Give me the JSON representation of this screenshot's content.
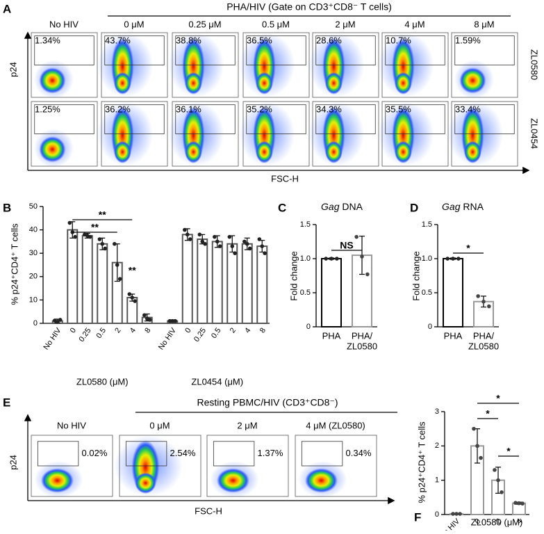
{
  "panel_a": {
    "label": "A",
    "header": "PHA/HIV (Gate on CD3⁺CD8⁻ T cells)",
    "columns": [
      "No HIV",
      "0 μM",
      "0.25 μM",
      "0.5 μM",
      "2 μM",
      "4 μM",
      "8 μM"
    ],
    "rows": [
      {
        "name": "ZL0580",
        "percents": [
          "1.34%",
          "43.7%",
          "38.8%",
          "36.5%",
          "28.6%",
          "10.7%",
          "1.59%"
        ]
      },
      {
        "name": "ZL0454",
        "percents": [
          "1.25%",
          "36.2%",
          "36.1%",
          "35.2%",
          "34.3%",
          "35.5%",
          "33.4%"
        ]
      }
    ],
    "y_label": "p24",
    "x_label": "FSC-H"
  },
  "panel_e": {
    "label": "E",
    "header": "Resting PBMC/HIV (CD3⁺CD8⁻)",
    "columns": [
      "No HIV",
      "0 μM",
      "2 μM",
      "4 μM (ZL0580)"
    ],
    "percents": [
      "0.02%",
      "2.54%",
      "1.37%",
      "0.34%"
    ],
    "y_label": "p24",
    "x_label": "FSC-H"
  },
  "chart_data": [
    {
      "type": "bar",
      "label": "B",
      "y_label": "% p24⁺CD4⁺ T cells",
      "ylim": [
        0,
        50
      ],
      "yticks": [
        0,
        10,
        20,
        30,
        40,
        50
      ],
      "color": "#555555",
      "groups": [
        {
          "name": "ZL0580 (μM)",
          "categories": [
            "No HIV",
            "0",
            "0.25",
            "0.5",
            "2",
            "4",
            "8"
          ],
          "values": [
            1,
            40,
            37.5,
            34,
            26,
            11,
            2.5
          ],
          "errors": [
            0.8,
            3.5,
            1,
            2.5,
            8,
            1.5,
            1.5
          ],
          "points": [
            [
              1.2,
              0.6,
              1.5
            ],
            [
              43,
              39,
              37
            ],
            [
              38,
              37.5,
              37
            ],
            [
              36,
              34,
              32
            ],
            [
              34,
              25,
              19
            ],
            [
              12.5,
              11,
              9.5
            ],
            [
              3.5,
              2,
              1.5
            ]
          ]
        },
        {
          "name": "ZL0454 (μM)",
          "categories": [
            "No HIV",
            "0",
            "0.25",
            "0.5",
            "2",
            "4",
            "8"
          ],
          "values": [
            1,
            38,
            36,
            35,
            34,
            34,
            33
          ],
          "errors": [
            0.5,
            2.5,
            2,
            2.5,
            3.5,
            2.5,
            2.5
          ],
          "points": [
            [
              1,
              1,
              1
            ],
            [
              40,
              38,
              36
            ],
            [
              38,
              35,
              34
            ],
            [
              37,
              35,
              33
            ],
            [
              37,
              33,
              30
            ],
            [
              35,
              34,
              32
            ],
            [
              36,
              33,
              30
            ]
          ]
        }
      ],
      "significance": [
        "**",
        "**",
        "**"
      ]
    },
    {
      "type": "bar",
      "label": "C",
      "title_gene": "Gag",
      "title": "DNA",
      "y_label": "Fold change",
      "ylim": [
        0,
        1.5
      ],
      "yticks": [
        0,
        0.5,
        {
          "value": 1,
          "label": "1.0"
        },
        1.5
      ],
      "categories": [
        [
          "PHA"
        ],
        [
          "PHA/",
          "ZL0580"
        ]
      ],
      "colors": [
        "#000000",
        "#999999"
      ],
      "values": [
        1,
        1.05
      ],
      "errors": [
        0.01,
        0.28
      ],
      "points": [
        [
          1,
          1,
          1
        ],
        [
          1.32,
          1.03,
          0.77
        ]
      ],
      "significance": [
        "NS"
      ]
    },
    {
      "type": "bar",
      "label": "D",
      "title_gene": "Gag",
      "title": "RNA",
      "y_label": "Fold change",
      "ylim": [
        0,
        1.5
      ],
      "yticks": [
        0,
        0.5,
        {
          "value": 1,
          "label": "1.0"
        },
        1.5
      ],
      "categories": [
        [
          "PHA"
        ],
        [
          "PHA/",
          "ZL0580"
        ]
      ],
      "colors": [
        "#000000",
        "#999999"
      ],
      "values": [
        1,
        0.37
      ],
      "errors": [
        0.01,
        0.08
      ],
      "points": [
        [
          1,
          1,
          1
        ],
        [
          0.45,
          0.37,
          0.3
        ]
      ],
      "significance": [
        "*"
      ]
    },
    {
      "type": "bar",
      "label": "F",
      "y_label": "% p24⁺CD4⁺ T cells",
      "ylim": [
        0,
        3
      ],
      "yticks": [
        0,
        1,
        2,
        3
      ],
      "color": "#999999",
      "groups": [
        {
          "name": "ZL0580 (μM)",
          "categories": [
            "No HIV",
            "0",
            "2",
            "4"
          ],
          "values": [
            0.02,
            2.0,
            1.0,
            0.33
          ],
          "errors": [
            0.01,
            0.5,
            0.38,
            0.03
          ],
          "points": [
            [
              0.02,
              0.02,
              0.02
            ],
            [
              2.5,
              2.0,
              1.65
            ],
            [
              1.3,
              1.0,
              0.65
            ],
            [
              0.34,
              0.33,
              0.32
            ]
          ]
        }
      ],
      "significance": [
        "*",
        "*",
        "*"
      ]
    }
  ]
}
